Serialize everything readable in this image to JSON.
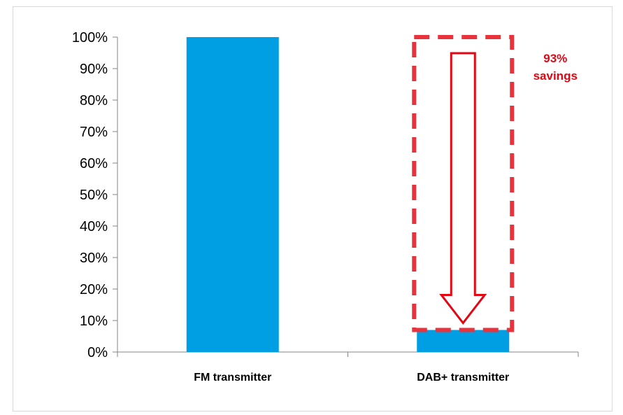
{
  "chart_data": {
    "type": "bar",
    "categories": [
      "FM transmitter",
      "DAB+ transmitter"
    ],
    "values": [
      100,
      7
    ],
    "ylim": [
      0,
      100
    ],
    "yticks": [
      "0%",
      "10%",
      "20%",
      "30%",
      "40%",
      "50%",
      "60%",
      "70%",
      "80%",
      "90%",
      "100%"
    ],
    "ytick_values": [
      0,
      10,
      20,
      30,
      40,
      50,
      60,
      70,
      80,
      90,
      100
    ],
    "title": "",
    "xlabel": "",
    "ylabel": "",
    "grid": false,
    "bar_color": "#009fe3",
    "annotation": {
      "line1": "93%",
      "line2": "savings",
      "color": "#e30613",
      "box_color": "#e8323c"
    }
  }
}
